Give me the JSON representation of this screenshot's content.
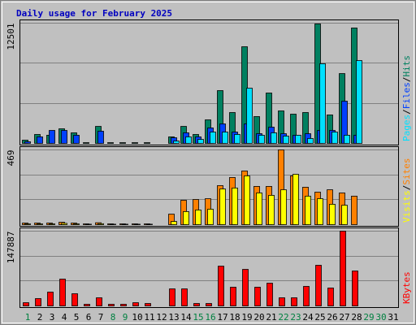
{
  "title": "Daily usage for February 2025",
  "chart_data": [
    {
      "type": "bar",
      "legend_separator": "/",
      "ylim": [
        0,
        12501
      ],
      "yticks": [
        12501
      ],
      "grid_lines": 3,
      "categories": [
        "1",
        "2",
        "3",
        "4",
        "5",
        "6",
        "7",
        "8",
        "9",
        "10",
        "11",
        "12",
        "13",
        "14",
        "15",
        "16",
        "17",
        "18",
        "19",
        "20",
        "21",
        "22",
        "23",
        "24",
        "25",
        "26",
        "27",
        "28",
        "29",
        "30",
        "31"
      ],
      "series": [
        {
          "name": "Hits",
          "color": "#008060",
          "values": [
            340,
            930,
            850,
            1520,
            1100,
            80,
            1770,
            80,
            80,
            80,
            80,
            0,
            680,
            1770,
            930,
            2450,
            5490,
            3210,
            10050,
            2790,
            5240,
            3380,
            3040,
            3210,
            12420,
            2960,
            7260,
            12000,
            null,
            null,
            null
          ]
        },
        {
          "name": "Files",
          "color": "#0040ff",
          "values": [
            170,
            680,
            1350,
            1350,
            850,
            0,
            1270,
            0,
            0,
            0,
            0,
            0,
            590,
            1100,
            680,
            1610,
            2030,
            1180,
            2030,
            1010,
            1690,
            1010,
            850,
            1010,
            1350,
            1350,
            4390,
            850,
            null,
            null,
            null
          ]
        },
        {
          "name": "Pages",
          "color": "#00e0ff",
          "values": [
            0,
            0,
            0,
            0,
            0,
            0,
            0,
            0,
            0,
            0,
            0,
            0,
            250,
            680,
            420,
            1180,
            1180,
            930,
            5740,
            850,
            1100,
            760,
            850,
            510,
            8280,
            1180,
            850,
            8610,
            null,
            null,
            null
          ]
        }
      ]
    },
    {
      "type": "bar",
      "legend_separator": "/",
      "ylim": [
        0,
        469
      ],
      "yticks": [
        469
      ],
      "grid_lines": 3,
      "categories": [
        "1",
        "2",
        "3",
        "4",
        "5",
        "6",
        "7",
        "8",
        "9",
        "10",
        "11",
        "12",
        "13",
        "14",
        "15",
        "16",
        "17",
        "18",
        "19",
        "20",
        "21",
        "22",
        "23",
        "24",
        "25",
        "26",
        "27",
        "28",
        "29",
        "30",
        "31"
      ],
      "series": [
        {
          "name": "Sites",
          "color": "#ff8000",
          "values": [
            10,
            10,
            10,
            15,
            10,
            5,
            12,
            5,
            5,
            5,
            5,
            0,
            66,
            153,
            158,
            163,
            245,
            296,
            337,
            240,
            240,
            469,
            306,
            235,
            204,
            219,
            199,
            179,
            null,
            null,
            null
          ]
        },
        {
          "name": "Visits",
          "color": "#ffff00",
          "values": [
            5,
            5,
            5,
            8,
            5,
            3,
            6,
            3,
            3,
            3,
            3,
            0,
            20,
            82,
            92,
            97,
            224,
            230,
            306,
            199,
            184,
            219,
            316,
            179,
            163,
            128,
            122,
            0,
            null,
            null,
            null
          ]
        }
      ]
    },
    {
      "type": "bar",
      "ylim": [
        0,
        147887
      ],
      "yticks": [
        147887
      ],
      "grid_lines": 3,
      "categories": [
        "1",
        "2",
        "3",
        "4",
        "5",
        "6",
        "7",
        "8",
        "9",
        "10",
        "11",
        "12",
        "13",
        "14",
        "15",
        "16",
        "17",
        "18",
        "19",
        "20",
        "21",
        "22",
        "23",
        "24",
        "25",
        "26",
        "27",
        "28",
        "29",
        "30",
        "31"
      ],
      "category_colors": [
        "#008040",
        "#000000",
        "#000000",
        "#000000",
        "#000000",
        "#000000",
        "#000000",
        "#008040",
        "#008040",
        "#000000",
        "#000000",
        "#000000",
        "#000000",
        "#000000",
        "#008040",
        "#008040",
        "#000000",
        "#000000",
        "#000000",
        "#000000",
        "#000000",
        "#008040",
        "#008040",
        "#000000",
        "#000000",
        "#000000",
        "#000000",
        "#000000",
        "#008040",
        "#008040",
        "#000000"
      ],
      "series": [
        {
          "name": "KBytes",
          "color": "#ff0000",
          "values": [
            6400,
            14500,
            27300,
            53000,
            24100,
            3200,
            16100,
            3200,
            3200,
            6400,
            4800,
            0,
            33700,
            33700,
            4800,
            4800,
            78700,
            37000,
            72300,
            37000,
            45000,
            16100,
            16100,
            38600,
            80400,
            35400,
            147887,
            69100,
            null,
            null,
            null
          ]
        }
      ]
    }
  ]
}
